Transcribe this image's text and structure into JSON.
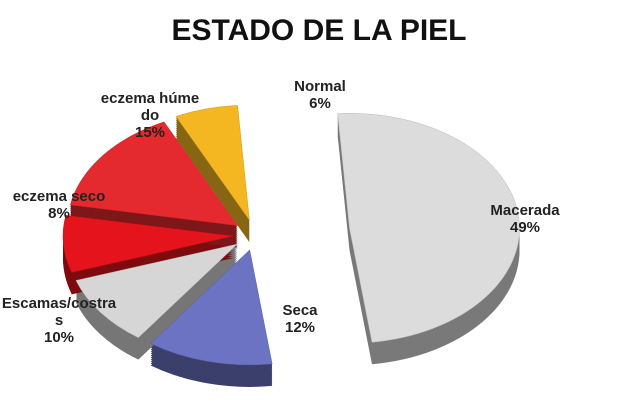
{
  "chart_data": {
    "type": "pie",
    "title": "ESTADO DE LA PIEL",
    "categories": [
      "Macerada",
      "Seca",
      "Escamas/costras",
      "eczema seco",
      "eczema húmedo",
      "Normal"
    ],
    "values": [
      49,
      12,
      10,
      8,
      15,
      6
    ],
    "value_labels": [
      "49%",
      "12%",
      "10%",
      "8%",
      "15%",
      "6%"
    ],
    "colors": [
      "#dcdcdc",
      "#6b73c2",
      "#d6d6d6",
      "#e5141c",
      "#e42a2e",
      "#f4b722"
    ]
  }
}
